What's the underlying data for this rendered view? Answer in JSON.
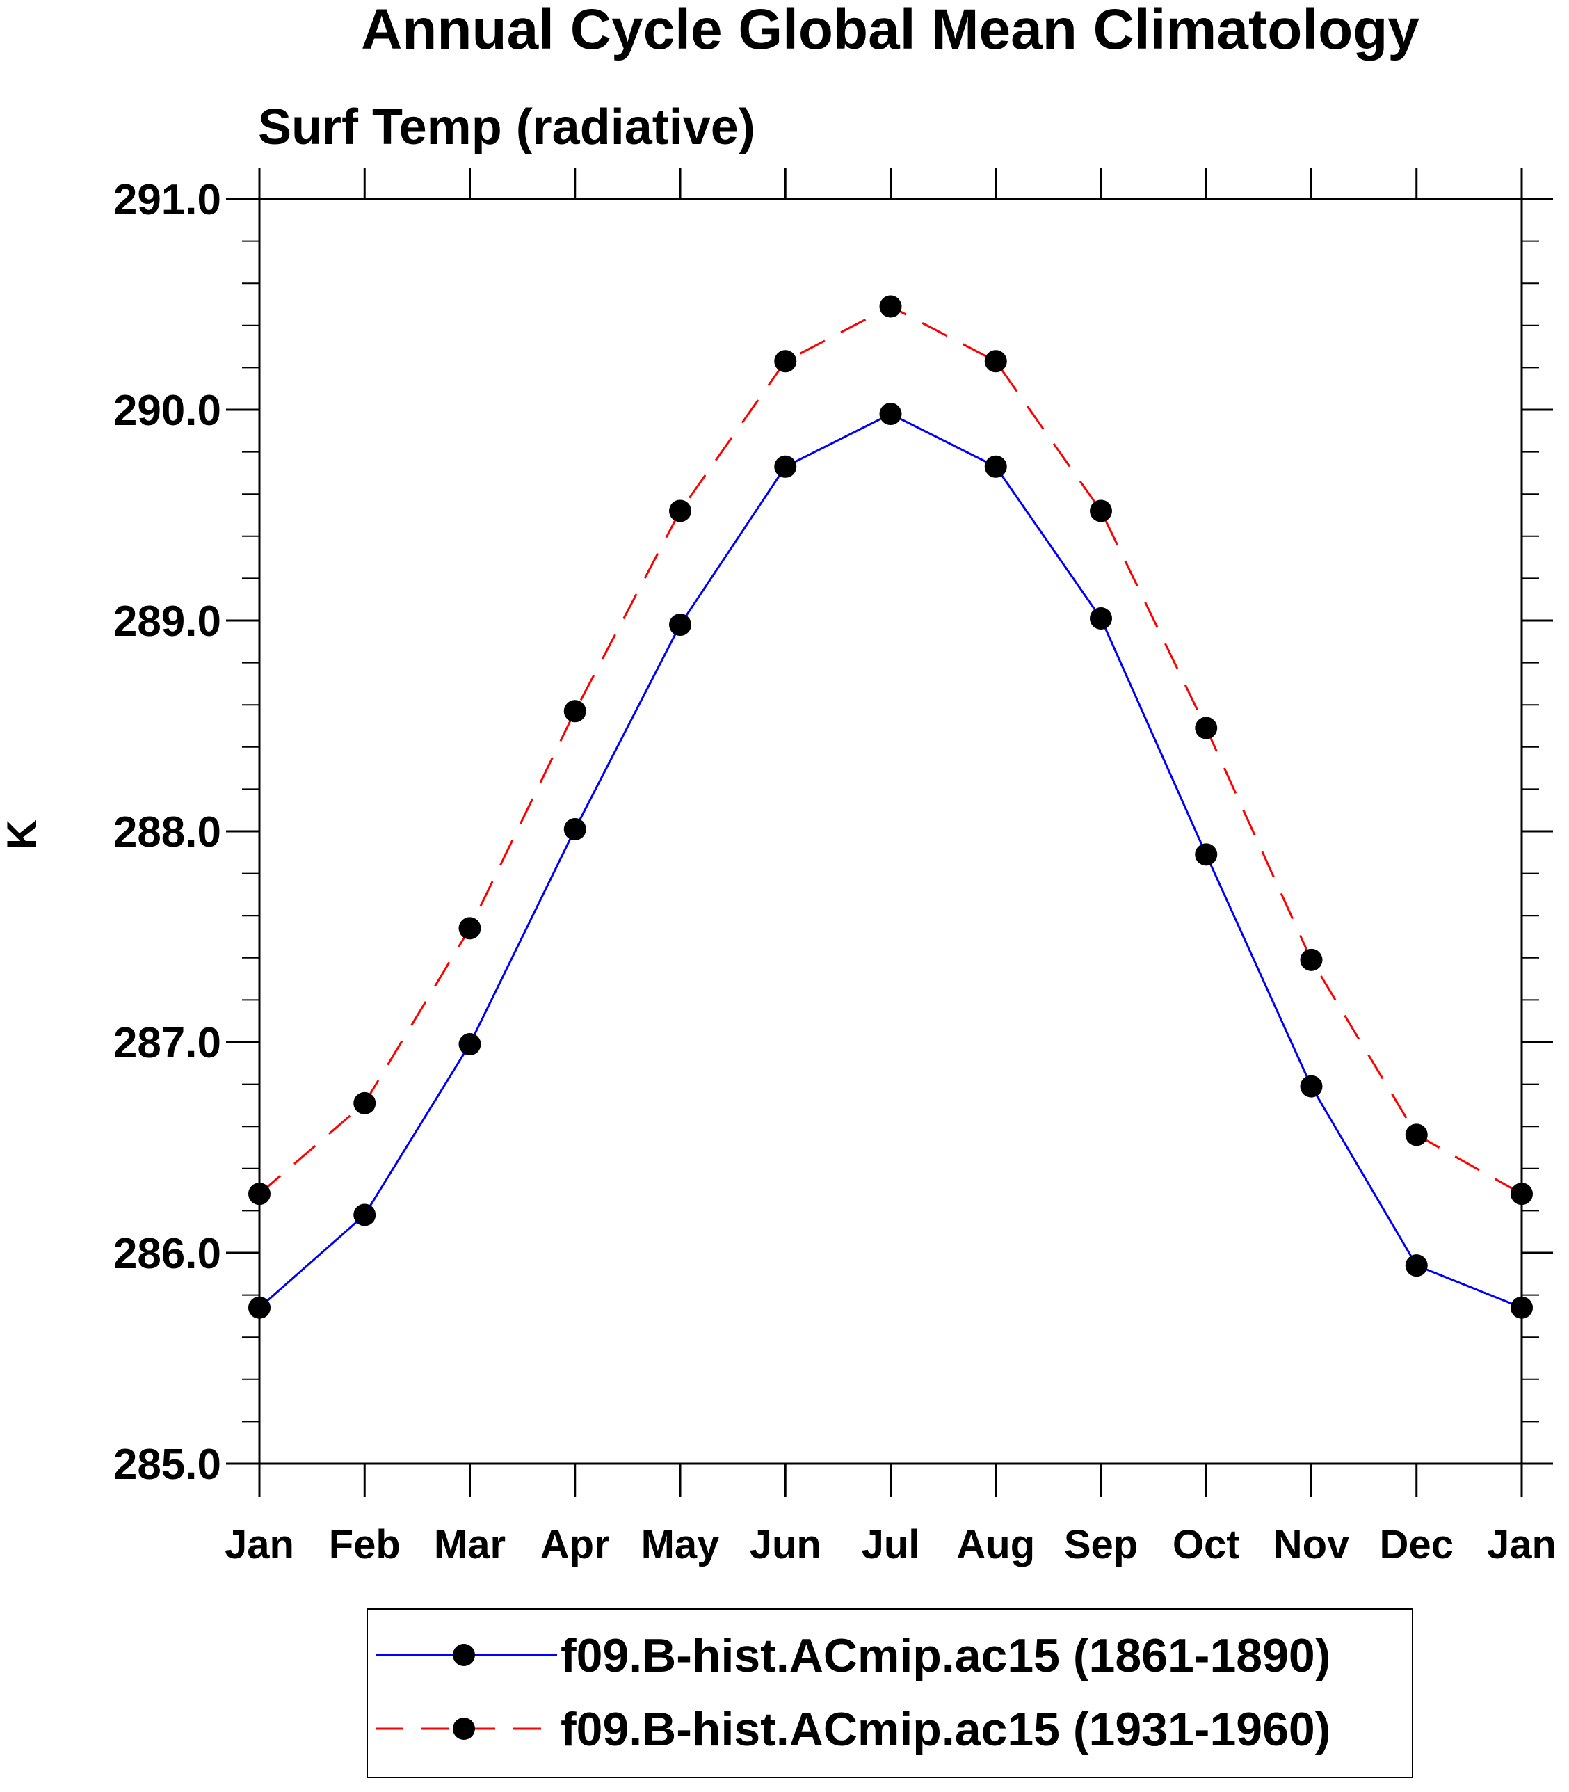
{
  "chart_data": {
    "type": "line",
    "title": "Annual Cycle Global Mean Climatology",
    "subtitle": "Surf Temp (radiative)",
    "xlabel": "",
    "ylabel": "K",
    "categories": [
      "Jan",
      "Feb",
      "Mar",
      "Apr",
      "May",
      "Jun",
      "Jul",
      "Aug",
      "Sep",
      "Oct",
      "Nov",
      "Dec",
      "Jan"
    ],
    "ylim": [
      285.0,
      291.0
    ],
    "yticks": [
      "285.0",
      "286.0",
      "287.0",
      "288.0",
      "289.0",
      "290.0",
      "291.0"
    ],
    "yminor_step": 0.2,
    "grid": false,
    "legend_position": "bottom-center",
    "series": [
      {
        "name": "f09.B-hist.ACmip.ac15 (1861-1890)",
        "color": "#0000ff",
        "dash": "solid",
        "values": [
          285.74,
          286.18,
          286.99,
          288.01,
          288.98,
          289.73,
          289.98,
          289.73,
          289.01,
          287.89,
          286.79,
          285.94,
          285.74
        ]
      },
      {
        "name": "f09.B-hist.ACmip.ac15 (1931-1960)",
        "color": "#ff0000",
        "dash": "dashed",
        "values": [
          286.28,
          286.71,
          287.54,
          288.57,
          289.52,
          290.23,
          290.49,
          290.23,
          289.52,
          288.49,
          287.39,
          286.56,
          286.28
        ]
      }
    ]
  }
}
